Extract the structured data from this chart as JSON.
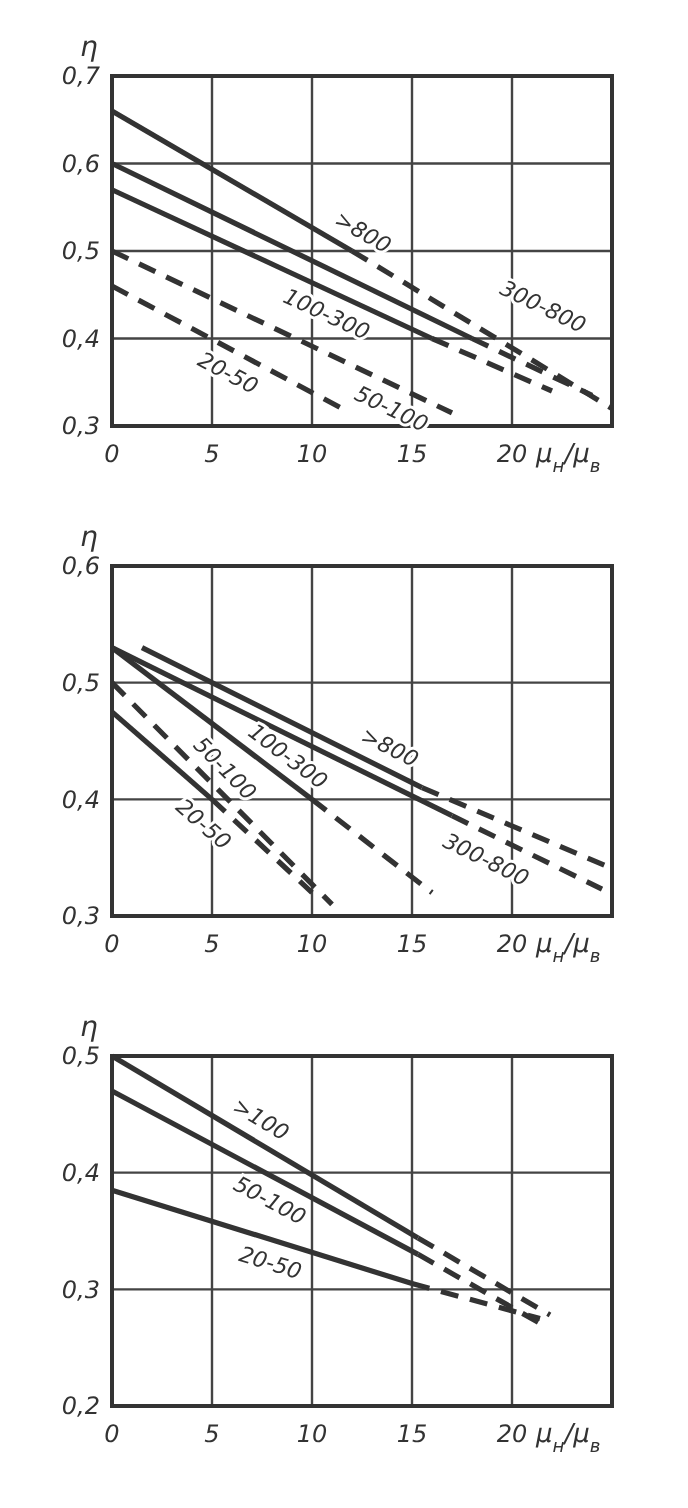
{
  "chart_data": [
    {
      "type": "line",
      "xlabel": "μ$_{н}$/μ$_{в}$",
      "ylabel": "η",
      "xlim": [
        0,
        25
      ],
      "ylim": [
        0.3,
        0.7
      ],
      "xticks": [
        0,
        5,
        10,
        15,
        20
      ],
      "yticks": [
        {
          "value": 0.3,
          "label": "0,3"
        },
        {
          "value": 0.4,
          "label": "0,4"
        },
        {
          "value": 0.5,
          "label": "0,5"
        },
        {
          "value": 0.6,
          "label": "0,6"
        },
        {
          "value": 0.7,
          "label": "0,7"
        }
      ],
      "grid": true,
      "series": [
        {
          "name": ">800",
          "color": "#333333",
          "line_style": "solid",
          "x": [
            0,
            12
          ],
          "values": [
            0.66,
            0.5
          ]
        },
        {
          "color": "#333333",
          "line_style": "dashed",
          "x": [
            12,
            25
          ],
          "values": [
            0.5,
            0.32
          ]
        },
        {
          "name": "300-800",
          "color": "#333333",
          "line_style": "solid",
          "x": [
            0,
            18
          ],
          "values": [
            0.6,
            0.4
          ]
        },
        {
          "color": "#333333",
          "line_style": "dashed",
          "x": [
            18,
            24
          ],
          "values": [
            0.4,
            0.335
          ]
        },
        {
          "name": "100-300",
          "color": "#333333",
          "line_style": "solid",
          "x": [
            0,
            16
          ],
          "values": [
            0.57,
            0.4
          ]
        },
        {
          "color": "#333333",
          "line_style": "dashed",
          "x": [
            16,
            22
          ],
          "values": [
            0.4,
            0.34
          ]
        },
        {
          "name": "50-100",
          "color": "#333333",
          "line_style": "dashed",
          "x": [
            0,
            17
          ],
          "values": [
            0.5,
            0.315
          ]
        },
        {
          "name": "20-50",
          "color": "#333333",
          "line_style": "dashed",
          "x": [
            0,
            11.5
          ],
          "values": [
            0.46,
            0.32
          ]
        }
      ]
    },
    {
      "type": "line",
      "xlabel": "μ$_{н}$/μ$_{в}$",
      "ylabel": "η",
      "xlim": [
        0,
        25
      ],
      "ylim": [
        0.3,
        0.6
      ],
      "xticks": [
        0,
        5,
        10,
        15,
        20
      ],
      "yticks": [
        {
          "value": 0.3,
          "label": "0,3"
        },
        {
          "value": 0.4,
          "label": "0,4"
        },
        {
          "value": 0.5,
          "label": "0,5"
        },
        {
          "value": 0.6,
          "label": "0,6"
        }
      ],
      "grid": true,
      "series": [
        {
          "name": ">800",
          "color": "#333333",
          "line_style": "solid",
          "x": [
            1.5,
            15.5
          ],
          "values": [
            0.53,
            0.41
          ]
        },
        {
          "color": "#333333",
          "line_style": "dashed",
          "x": [
            15.5,
            24.7
          ],
          "values": [
            0.41,
            0.343
          ]
        },
        {
          "name": "300-800",
          "color": "#333333",
          "line_style": "solid",
          "x": [
            0,
            17
          ],
          "values": [
            0.53,
            0.386
          ]
        },
        {
          "color": "#333333",
          "line_style": "dashed",
          "x": [
            17,
            24.5
          ],
          "values": [
            0.386,
            0.323
          ]
        },
        {
          "name": "100-300",
          "color": "#333333",
          "line_style": "solid",
          "x": [
            0,
            10
          ],
          "values": [
            0.53,
            0.4
          ]
        },
        {
          "color": "#333333",
          "line_style": "dashed",
          "x": [
            10,
            16
          ],
          "values": [
            0.4,
            0.32
          ]
        },
        {
          "name": "50-100",
          "color": "#333333",
          "line_style": "dashed",
          "x": [
            0,
            11
          ],
          "values": [
            0.5,
            0.31
          ]
        },
        {
          "name": "20-50",
          "color": "#333333",
          "line_style": "solid",
          "x": [
            0,
            5
          ],
          "values": [
            0.475,
            0.4
          ]
        },
        {
          "color": "#333333",
          "line_style": "dashed",
          "x": [
            5,
            10
          ],
          "values": [
            0.4,
            0.32
          ]
        }
      ]
    },
    {
      "type": "line",
      "xlabel": "μ$_{н}$/μ$_{в}$",
      "ylabel": "η",
      "xlim": [
        0,
        25
      ],
      "ylim": [
        0.2,
        0.5
      ],
      "xticks": [
        0,
        5,
        10,
        15,
        20
      ],
      "yticks": [
        {
          "value": 0.2,
          "label": "0,2"
        },
        {
          "value": 0.3,
          "label": "0,3"
        },
        {
          "value": 0.4,
          "label": "0,4"
        },
        {
          "value": 0.5,
          "label": "0,5"
        }
      ],
      "grid": true,
      "series": [
        {
          "name": ">100",
          "color": "#333333",
          "line_style": "solid",
          "x": [
            0,
            15.3
          ],
          "values": [
            0.5,
            0.344
          ]
        },
        {
          "color": "#333333",
          "line_style": "dashed",
          "x": [
            15.3,
            21.9
          ],
          "values": [
            0.344,
            0.278
          ]
        },
        {
          "name": "50-100",
          "color": "#333333",
          "line_style": "solid",
          "x": [
            0,
            15.3
          ],
          "values": [
            0.47,
            0.33
          ]
        },
        {
          "color": "#333333",
          "line_style": "dashed",
          "x": [
            15.3,
            21.7
          ],
          "values": [
            0.33,
            0.268
          ]
        },
        {
          "name": "20-50",
          "color": "#333333",
          "line_style": "solid",
          "x": [
            0,
            15
          ],
          "values": [
            0.385,
            0.305
          ]
        },
        {
          "color": "#333333",
          "line_style": "dashed",
          "x": [
            15,
            21.4
          ],
          "values": [
            0.305,
            0.275
          ]
        }
      ]
    }
  ]
}
